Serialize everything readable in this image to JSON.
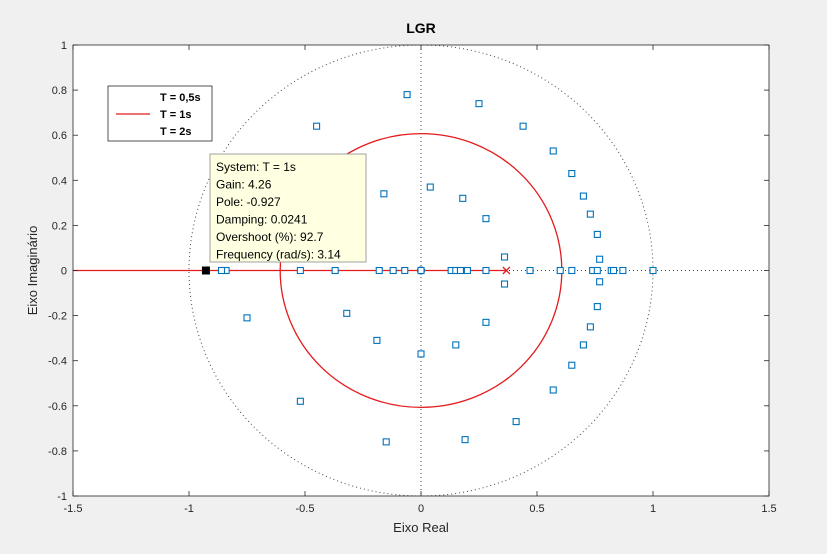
{
  "chart_data": {
    "type": "scatter",
    "title": "LGR",
    "xlabel": "Eixo Real",
    "ylabel": "Eixo Imaginário",
    "xlim": [
      -1.5,
      1.5
    ],
    "ylim": [
      -1,
      1
    ],
    "xticks": [
      "-1.5",
      "-1",
      "-0.5",
      "0",
      "0.5",
      "1",
      "1.5"
    ],
    "yticks": [
      "-1",
      "-0.8",
      "-0.6",
      "-0.4",
      "-0.2",
      "0",
      "0.2",
      "0.4",
      "0.6",
      "0.8",
      "1"
    ],
    "grid": false,
    "unit_circle": true,
    "legend": {
      "location": "top-left",
      "entries": [
        "T = 0,5s",
        "T = 1s",
        "T = 2s"
      ]
    },
    "series": [
      {
        "name": "T = 1s",
        "color": "#e41a1c",
        "style": "line",
        "pole": [
          0.368,
          0
        ],
        "zero": [
          0,
          0
        ],
        "circle": {
          "center": [
            0,
            0
          ],
          "radius": 0.607
        },
        "real_axis_left": [
          -1.5,
          0
        ]
      },
      {
        "name": "markers",
        "color": "#0072bd",
        "style": "square",
        "points": [
          [
            -0.06,
            0.78
          ],
          [
            0.25,
            0.74
          ],
          [
            -0.45,
            0.64
          ],
          [
            0.44,
            0.64
          ],
          [
            0.57,
            0.53
          ],
          [
            0.65,
            0.43
          ],
          [
            -0.16,
            0.34
          ],
          [
            0.04,
            0.37
          ],
          [
            0.18,
            0.32
          ],
          [
            0.7,
            0.33
          ],
          [
            0.73,
            0.25
          ],
          [
            0.28,
            0.23
          ],
          [
            0.76,
            0.16
          ],
          [
            0.36,
            0.06
          ],
          [
            0.77,
            0.05
          ],
          [
            -0.84,
            0
          ],
          [
            -0.86,
            0
          ],
          [
            -0.52,
            0
          ],
          [
            -0.37,
            0
          ],
          [
            -0.18,
            0
          ],
          [
            -0.12,
            0
          ],
          [
            -0.07,
            0
          ],
          [
            0,
            0
          ],
          [
            0.13,
            0
          ],
          [
            0.15,
            0
          ],
          [
            0.17,
            0
          ],
          [
            0.2,
            0
          ],
          [
            0.28,
            0
          ],
          [
            0.47,
            0
          ],
          [
            0.6,
            0
          ],
          [
            0.65,
            0
          ],
          [
            0.74,
            0
          ],
          [
            0.76,
            0
          ],
          [
            0.82,
            0
          ],
          [
            0.83,
            0
          ],
          [
            0.87,
            0
          ],
          [
            1.0,
            0
          ],
          [
            0.36,
            -0.06
          ],
          [
            0.77,
            -0.05
          ],
          [
            0.76,
            -0.16
          ],
          [
            -0.75,
            -0.21
          ],
          [
            -0.32,
            -0.19
          ],
          [
            0.28,
            -0.23
          ],
          [
            0.73,
            -0.25
          ],
          [
            -0.19,
            -0.31
          ],
          [
            0.15,
            -0.33
          ],
          [
            0.7,
            -0.33
          ],
          [
            0,
            -0.37
          ],
          [
            0.65,
            -0.42
          ],
          [
            0.57,
            -0.53
          ],
          [
            -0.52,
            -0.58
          ],
          [
            0.41,
            -0.67
          ],
          [
            -0.15,
            -0.76
          ],
          [
            0.19,
            -0.75
          ]
        ]
      }
    ],
    "selected_point": [
      -0.927,
      0
    ],
    "datatip": {
      "lines": [
        "System: T = 1s",
        "Gain: 4.26",
        "Pole: -0.927",
        "Damping: 0.0241",
        "Overshoot (%): 92.7",
        "Frequency (rad/s): 3.14"
      ]
    }
  }
}
